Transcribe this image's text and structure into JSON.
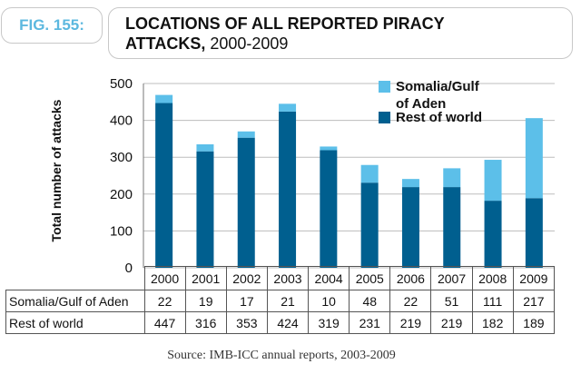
{
  "figure": {
    "label": "FIG. 155:",
    "title_bold": "LOCATIONS OF ALL REPORTED PIRACY ATTACKS,",
    "title_years": "2000-2009",
    "source": "Source: IMB-ICC annual reports, 2003-2009"
  },
  "colors": {
    "somalia": "#5cbfe9",
    "rest": "#005f8f",
    "grid": "#bdbdbd",
    "badge": "#5cb8df"
  },
  "table": {
    "somalia_label": "Somalia/Gulf of Aden",
    "rest_label": "Rest of world"
  },
  "chart_data": {
    "type": "bar",
    "stacked": true,
    "ylabel": "Total number of attacks",
    "ylim": [
      0,
      500
    ],
    "yticks": [
      0,
      100,
      200,
      300,
      400,
      500
    ],
    "categories": [
      "2000",
      "2001",
      "2002",
      "2003",
      "2004",
      "2005",
      "2006",
      "2007",
      "2008",
      "2009"
    ],
    "series": [
      {
        "name": "Rest of world",
        "values": [
          447,
          316,
          353,
          424,
          319,
          231,
          219,
          219,
          182,
          189
        ]
      },
      {
        "name": "Somalia/Gulf of Aden",
        "values": [
          22,
          19,
          17,
          21,
          10,
          48,
          22,
          51,
          111,
          217
        ]
      }
    ],
    "legend": [
      {
        "line1": "Somalia/Gulf",
        "line2": "of Aden"
      },
      {
        "line1": "Rest of world"
      }
    ],
    "legend_position": "top-right",
    "grid": true
  }
}
